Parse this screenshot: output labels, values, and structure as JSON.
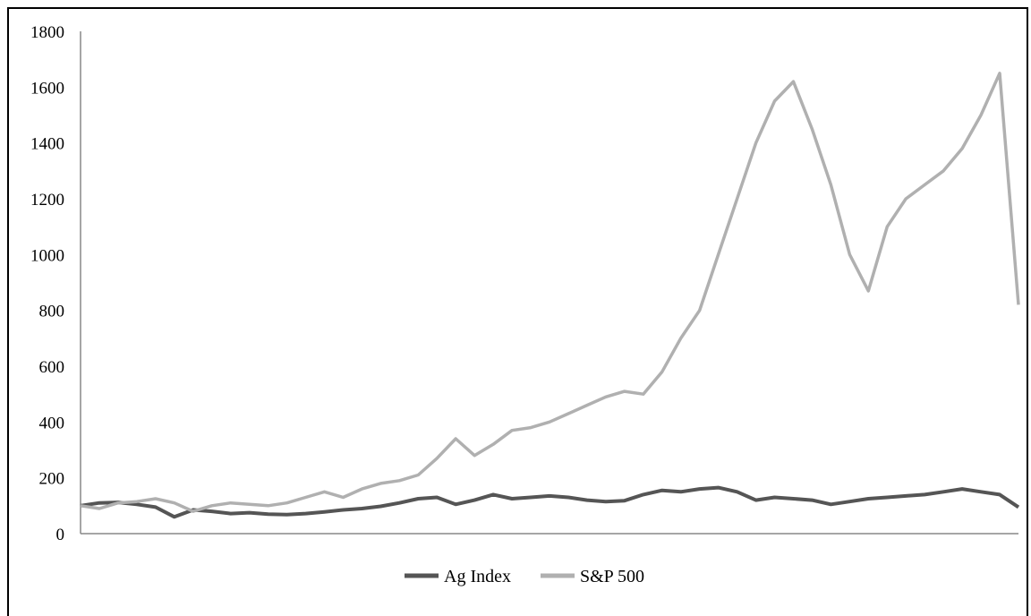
{
  "chart_data": {
    "type": "line",
    "title": "",
    "xlabel": "",
    "ylabel": "",
    "ylim": [
      0,
      1800
    ],
    "yticks": [
      0,
      200,
      400,
      600,
      800,
      1000,
      1200,
      1400,
      1600,
      1800
    ],
    "grid": false,
    "legend": "bottom",
    "x": [
      0,
      2,
      4,
      6,
      8,
      10,
      12,
      14,
      16,
      18,
      20,
      22,
      24,
      26,
      28,
      30,
      32,
      34,
      36,
      38,
      40,
      42,
      44,
      46,
      48,
      50,
      52,
      54,
      56,
      58,
      60,
      62,
      64,
      66,
      68,
      70,
      72,
      74,
      76,
      78,
      80,
      82,
      84,
      86,
      88,
      90,
      92,
      94,
      96,
      98,
      100
    ],
    "series": [
      {
        "name": "Ag Index",
        "color": "#555555",
        "values": [
          100,
          110,
          112,
          105,
          95,
          60,
          85,
          80,
          72,
          75,
          70,
          68,
          72,
          78,
          85,
          90,
          98,
          110,
          125,
          130,
          105,
          120,
          140,
          125,
          130,
          135,
          130,
          120,
          115,
          118,
          140,
          155,
          150,
          160,
          165,
          150,
          120,
          130,
          125,
          120,
          105,
          115,
          125,
          130,
          135,
          140,
          150,
          160,
          150,
          140,
          95
        ]
      },
      {
        "name": "S&P 500",
        "color": "#b0b0b0",
        "values": [
          100,
          90,
          110,
          115,
          125,
          110,
          80,
          100,
          110,
          105,
          100,
          110,
          130,
          150,
          130,
          160,
          180,
          190,
          210,
          270,
          340,
          280,
          320,
          370,
          380,
          400,
          430,
          460,
          490,
          510,
          500,
          580,
          700,
          800,
          1000,
          1200,
          1400,
          1550,
          1620,
          1450,
          1250,
          1000,
          870,
          1100,
          1200,
          1250,
          1300,
          1380,
          1500,
          1650,
          820
        ]
      }
    ]
  }
}
